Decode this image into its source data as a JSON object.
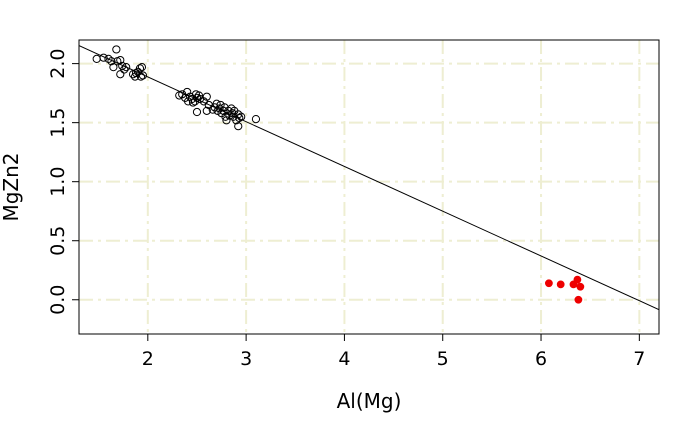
{
  "chart_data": {
    "type": "scatter",
    "title": "",
    "xlabel": "Al(Mg)",
    "ylabel": "MgZn2",
    "xlim": [
      1.3,
      7.2
    ],
    "ylim": [
      -0.29,
      2.2
    ],
    "xticks": [
      2,
      3,
      4,
      5,
      6,
      7
    ],
    "xtick_labels": [
      "2",
      "3",
      "4",
      "5",
      "6",
      "7"
    ],
    "yticks": [
      0.0,
      0.5,
      1.0,
      1.5,
      2.0
    ],
    "ytick_labels": [
      "0.0",
      "0.5",
      "1.0",
      "1.5",
      "2.0"
    ],
    "grid": true,
    "grid_color": "#eeeed2",
    "fit_line": {
      "intercept": 2.645,
      "slope": -0.379
    },
    "series": [
      {
        "marker": "open-circle",
        "color": "#000000",
        "points": [
          [
            1.48,
            2.04
          ],
          [
            1.55,
            2.05
          ],
          [
            1.6,
            2.04
          ],
          [
            1.63,
            2.02
          ],
          [
            1.65,
            1.97
          ],
          [
            1.68,
            2.12
          ],
          [
            1.69,
            2.02
          ],
          [
            1.72,
            2.03
          ],
          [
            1.74,
            1.98
          ],
          [
            1.76,
            1.95
          ],
          [
            1.78,
            1.97
          ],
          [
            1.72,
            1.91
          ],
          [
            1.85,
            1.91
          ],
          [
            1.87,
            1.89
          ],
          [
            1.88,
            1.92
          ],
          [
            1.9,
            1.93
          ],
          [
            1.92,
            1.96
          ],
          [
            1.93,
            1.89
          ],
          [
            1.94,
            1.97
          ],
          [
            1.95,
            1.9
          ],
          [
            2.32,
            1.73
          ],
          [
            2.35,
            1.74
          ],
          [
            2.38,
            1.71
          ],
          [
            2.4,
            1.76
          ],
          [
            2.41,
            1.68
          ],
          [
            2.43,
            1.72
          ],
          [
            2.45,
            1.7
          ],
          [
            2.46,
            1.67
          ],
          [
            2.48,
            1.68
          ],
          [
            2.49,
            1.74
          ],
          [
            2.5,
            1.71
          ],
          [
            2.52,
            1.73
          ],
          [
            2.53,
            1.7
          ],
          [
            2.5,
            1.59
          ],
          [
            2.57,
            1.68
          ],
          [
            2.6,
            1.72
          ],
          [
            2.62,
            1.65
          ],
          [
            2.6,
            1.6
          ],
          [
            2.66,
            1.61
          ],
          [
            2.68,
            1.63
          ],
          [
            2.7,
            1.66
          ],
          [
            2.71,
            1.6
          ],
          [
            2.73,
            1.62
          ],
          [
            2.74,
            1.65
          ],
          [
            2.75,
            1.58
          ],
          [
            2.77,
            1.6
          ],
          [
            2.78,
            1.63
          ],
          [
            2.79,
            1.55
          ],
          [
            2.8,
            1.52
          ],
          [
            2.82,
            1.6
          ],
          [
            2.83,
            1.56
          ],
          [
            2.85,
            1.62
          ],
          [
            2.86,
            1.58
          ],
          [
            2.87,
            1.55
          ],
          [
            2.88,
            1.6
          ],
          [
            2.9,
            1.52
          ],
          [
            2.92,
            1.57
          ],
          [
            2.93,
            1.54
          ],
          [
            2.95,
            1.55
          ],
          [
            2.92,
            1.47
          ],
          [
            3.1,
            1.53
          ]
        ]
      },
      {
        "marker": "filled-circle",
        "color": "#ee0000",
        "points": [
          [
            6.08,
            0.14
          ],
          [
            6.2,
            0.13
          ],
          [
            6.33,
            0.13
          ],
          [
            6.37,
            0.17
          ],
          [
            6.4,
            0.11
          ],
          [
            6.38,
            0.0
          ]
        ]
      }
    ]
  }
}
